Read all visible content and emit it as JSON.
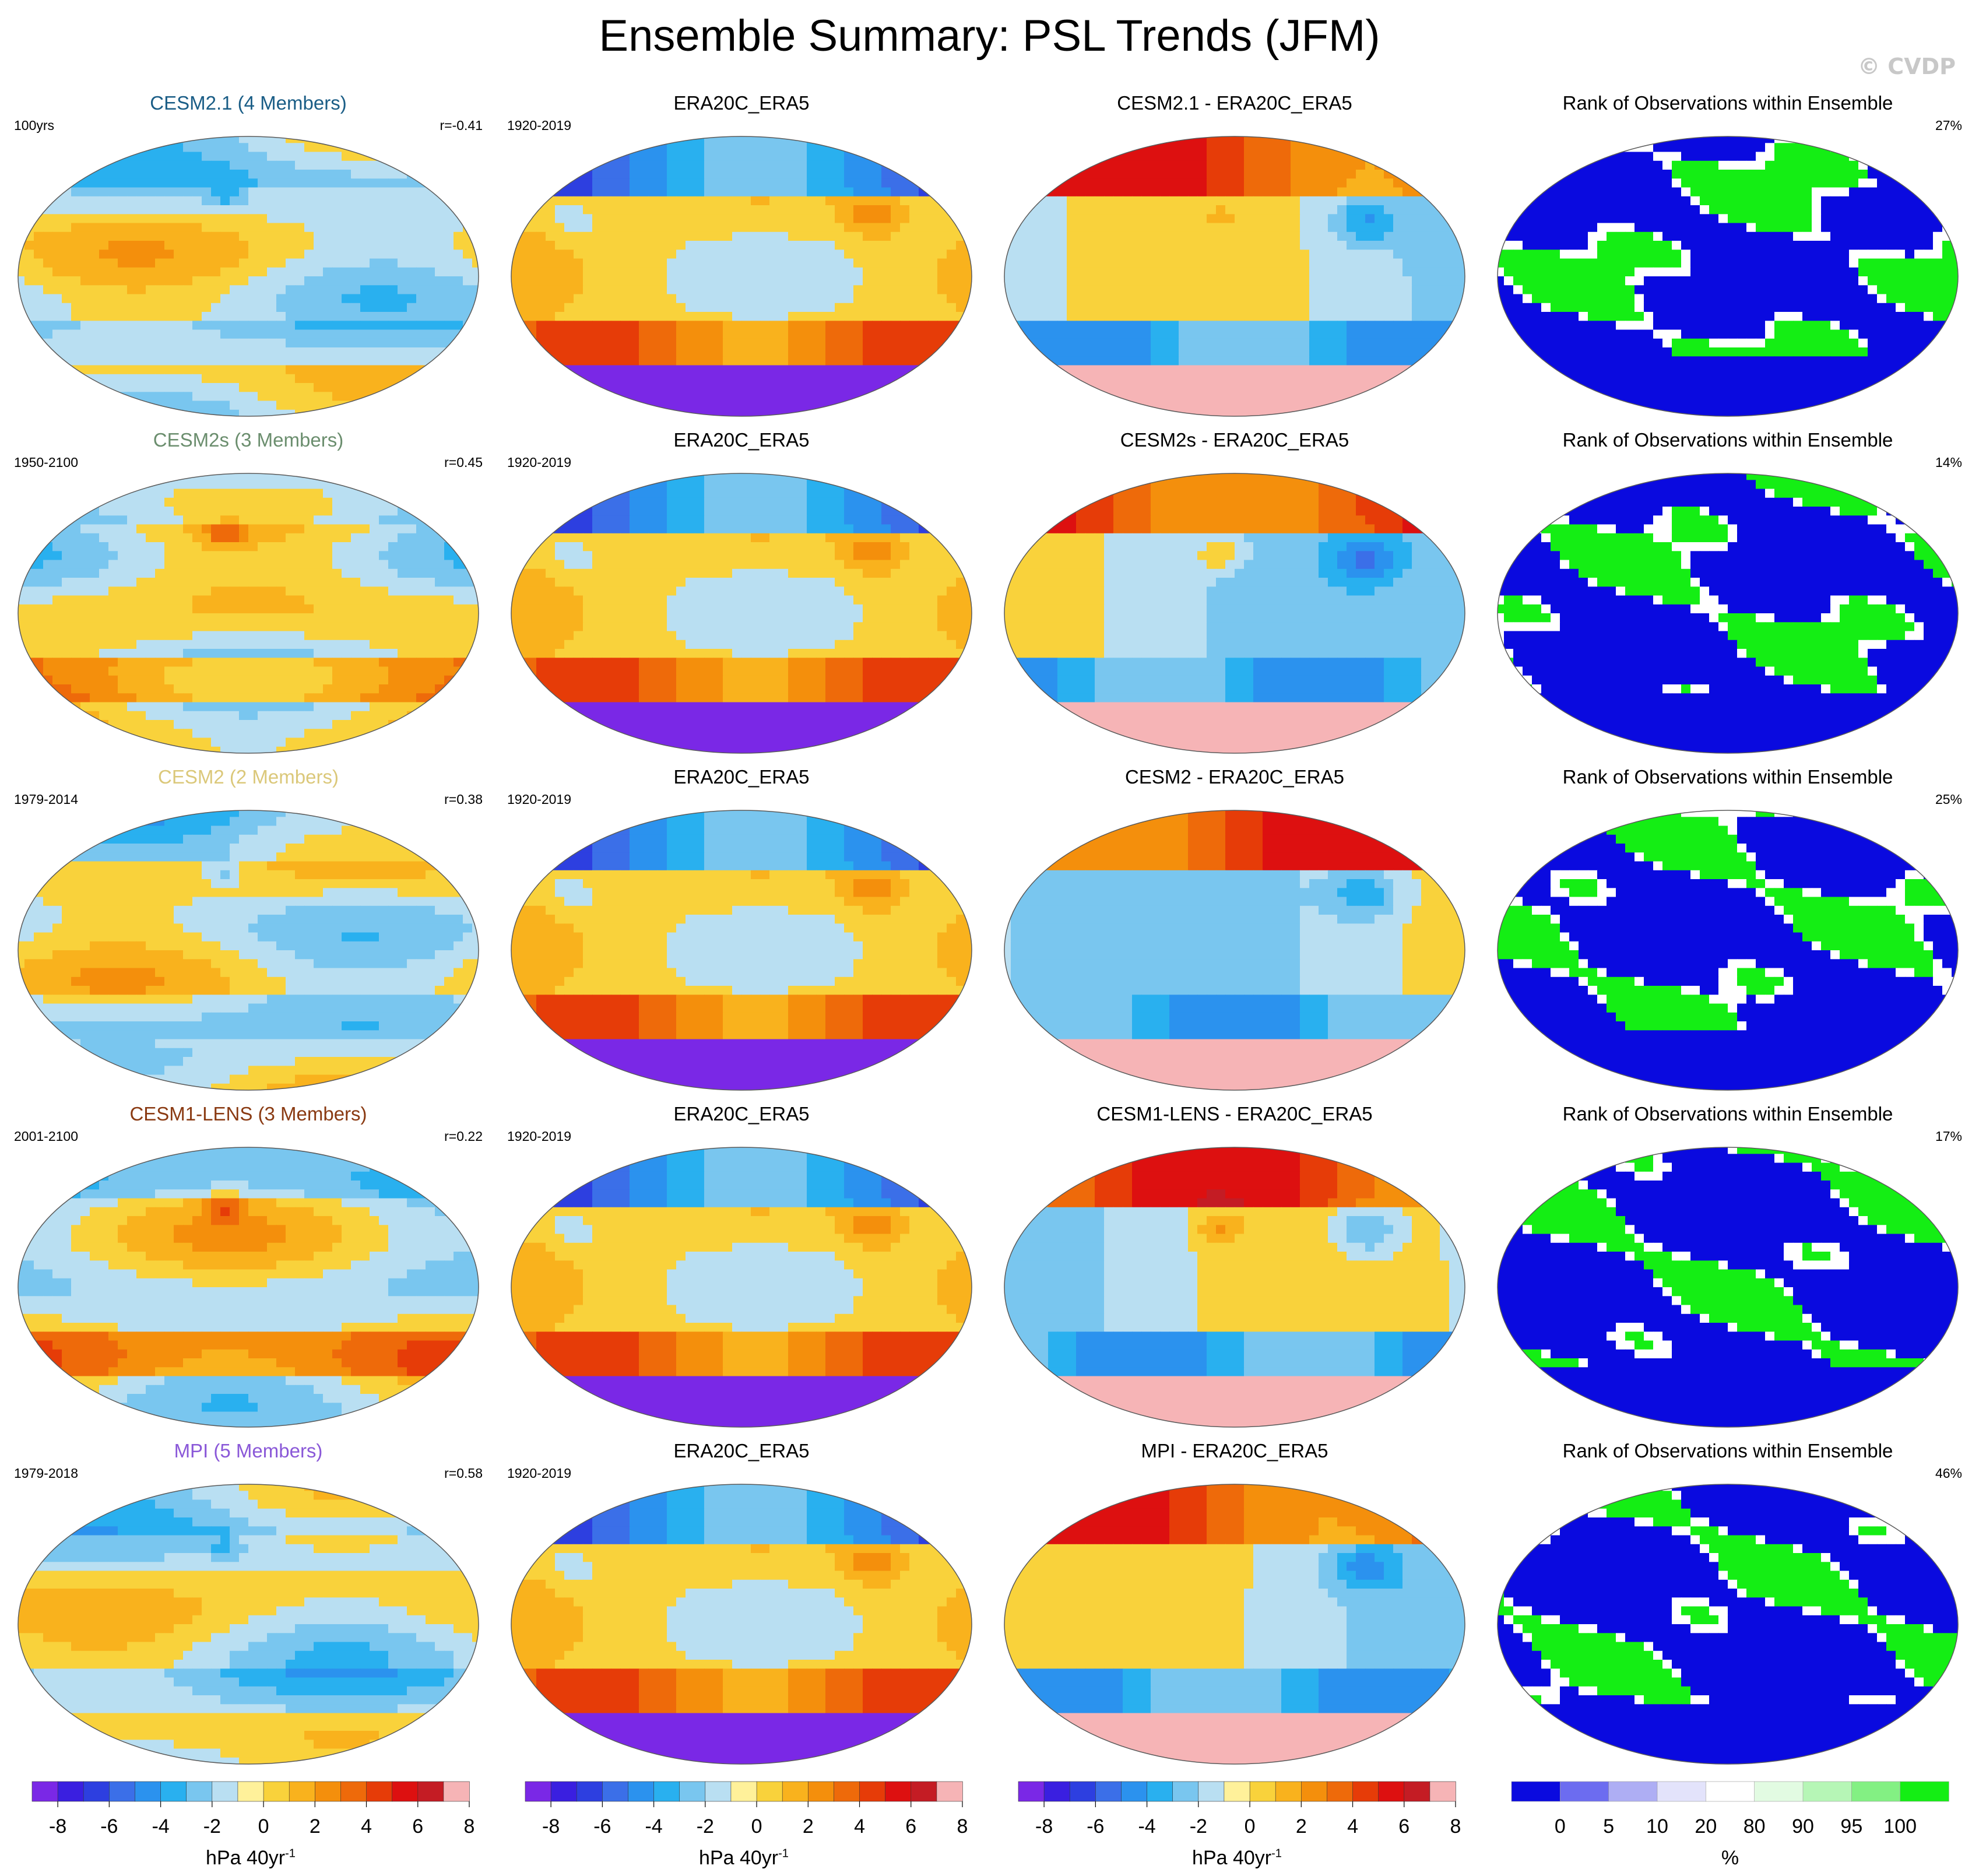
{
  "title": "Ensemble Summary: PSL Trends (JFM)",
  "copyright": "© CVDP",
  "colors": {
    "psl_levels": [
      "#7a28e6",
      "#3a1fe0",
      "#2d3fe0",
      "#3b6fe8",
      "#2b92ee",
      "#29b0ef",
      "#79c6ef",
      "#b9dff2",
      "#fff19a",
      "#f9d23b",
      "#f9b21d",
      "#f48f0c",
      "#ee6a0a",
      "#e63c08",
      "#dd1010",
      "#c41c24",
      "#f6b4b6"
    ],
    "rank_levels": [
      "#0a0adf",
      "#6c6cf0",
      "#aeaef4",
      "#e3e3fb",
      "#ffffff",
      "#e2fbe2",
      "#b6f6b6",
      "#83f083",
      "#14ee14"
    ],
    "ensemble_title_colors": [
      "#1a5d86",
      "#6b8e6e",
      "#dbc87a",
      "#8a3a12",
      "#8a58d8"
    ]
  },
  "rows": [
    {
      "ensemble": {
        "title": "CESM2.1 (4 Members)",
        "period": "100yrs",
        "r": "r=-0.41"
      },
      "obs": {
        "title": "ERA20C_ERA5",
        "period": "1920-2019"
      },
      "diff": {
        "title": "CESM2.1 - ERA20C_ERA5"
      },
      "rank": {
        "title": "Rank of Observations within Ensemble",
        "pct": "27%"
      }
    },
    {
      "ensemble": {
        "title": "CESM2s (3 Members)",
        "period": "1950-2100",
        "r": "r=0.45"
      },
      "obs": {
        "title": "ERA20C_ERA5",
        "period": "1920-2019"
      },
      "diff": {
        "title": "CESM2s - ERA20C_ERA5"
      },
      "rank": {
        "title": "Rank of Observations within Ensemble",
        "pct": "14%"
      }
    },
    {
      "ensemble": {
        "title": "CESM2 (2 Members)",
        "period": "1979-2014",
        "r": "r=0.38"
      },
      "obs": {
        "title": "ERA20C_ERA5",
        "period": "1920-2019"
      },
      "diff": {
        "title": "CESM2 - ERA20C_ERA5"
      },
      "rank": {
        "title": "Rank of Observations within Ensemble",
        "pct": "25%"
      }
    },
    {
      "ensemble": {
        "title": "CESM1-LENS (3 Members)",
        "period": "2001-2100",
        "r": "r=0.22"
      },
      "obs": {
        "title": "ERA20C_ERA5",
        "period": "1920-2019"
      },
      "diff": {
        "title": "CESM1-LENS - ERA20C_ERA5"
      },
      "rank": {
        "title": "Rank of Observations within Ensemble",
        "pct": "17%"
      }
    },
    {
      "ensemble": {
        "title": "MPI (5 Members)",
        "period": "1979-2018",
        "r": "r=0.58"
      },
      "obs": {
        "title": "ERA20C_ERA5",
        "period": "1920-2019"
      },
      "diff": {
        "title": "MPI - ERA20C_ERA5"
      },
      "rank": {
        "title": "Rank of Observations within Ensemble",
        "pct": "46%"
      }
    }
  ],
  "colorbars": {
    "psl": {
      "ticks": [
        "-8",
        "-6",
        "-4",
        "-2",
        "0",
        "2",
        "4",
        "6",
        "8"
      ],
      "unit": "hPa 40yr",
      "unit_exp": "-1"
    },
    "rank": {
      "ticks": [
        "0",
        "5",
        "10",
        "20",
        "80",
        "90",
        "95",
        "100"
      ],
      "unit": "%"
    }
  },
  "chart_data": [
    {
      "type": "heatmap",
      "title": "CESM2.1 (4 Members)",
      "units": "hPa 40yr-1",
      "range": [
        -8,
        8
      ],
      "stats": {
        "period": "100yrs",
        "pattern_correlation": -0.41
      }
    },
    {
      "type": "heatmap",
      "title": "ERA20C_ERA5",
      "units": "hPa 40yr-1",
      "range": [
        -8,
        8
      ],
      "stats": {
        "period": "1920-2019"
      }
    },
    {
      "type": "heatmap",
      "title": "CESM2.1 - ERA20C_ERA5",
      "units": "hPa 40yr-1",
      "range": [
        -8,
        8
      ]
    },
    {
      "type": "heatmap",
      "title": "Rank of Observations within Ensemble",
      "units": "%",
      "range": [
        0,
        100
      ],
      "stats": {
        "rank_pct": 27
      }
    },
    {
      "type": "heatmap",
      "title": "CESM2s (3 Members)",
      "units": "hPa 40yr-1",
      "range": [
        -8,
        8
      ],
      "stats": {
        "period": "1950-2100",
        "pattern_correlation": 0.45
      }
    },
    {
      "type": "heatmap",
      "title": "CESM2s - ERA20C_ERA5",
      "units": "hPa 40yr-1",
      "range": [
        -8,
        8
      ]
    },
    {
      "type": "heatmap",
      "title": "Rank of Observations within Ensemble",
      "units": "%",
      "range": [
        0,
        100
      ],
      "stats": {
        "rank_pct": 14
      }
    },
    {
      "type": "heatmap",
      "title": "CESM2 (2 Members)",
      "units": "hPa 40yr-1",
      "range": [
        -8,
        8
      ],
      "stats": {
        "period": "1979-2014",
        "pattern_correlation": 0.38
      }
    },
    {
      "type": "heatmap",
      "title": "CESM2 - ERA20C_ERA5",
      "units": "hPa 40yr-1",
      "range": [
        -8,
        8
      ]
    },
    {
      "type": "heatmap",
      "title": "Rank of Observations within Ensemble",
      "units": "%",
      "range": [
        0,
        100
      ],
      "stats": {
        "rank_pct": 25
      }
    },
    {
      "type": "heatmap",
      "title": "CESM1-LENS (3 Members)",
      "units": "hPa 40yr-1",
      "range": [
        -8,
        8
      ],
      "stats": {
        "period": "2001-2100",
        "pattern_correlation": 0.22
      }
    },
    {
      "type": "heatmap",
      "title": "CESM1-LENS - ERA20C_ERA5",
      "units": "hPa 40yr-1",
      "range": [
        -8,
        8
      ]
    },
    {
      "type": "heatmap",
      "title": "Rank of Observations within Ensemble",
      "units": "%",
      "range": [
        0,
        100
      ],
      "stats": {
        "rank_pct": 17
      }
    },
    {
      "type": "heatmap",
      "title": "MPI (5 Members)",
      "units": "hPa 40yr-1",
      "range": [
        -8,
        8
      ],
      "stats": {
        "period": "1979-2018",
        "pattern_correlation": 0.58
      }
    },
    {
      "type": "heatmap",
      "title": "MPI - ERA20C_ERA5",
      "units": "hPa 40yr-1",
      "range": [
        -8,
        8
      ]
    },
    {
      "type": "heatmap",
      "title": "Rank of Observations within Ensemble",
      "units": "%",
      "range": [
        0,
        100
      ],
      "stats": {
        "rank_pct": 46
      }
    }
  ]
}
